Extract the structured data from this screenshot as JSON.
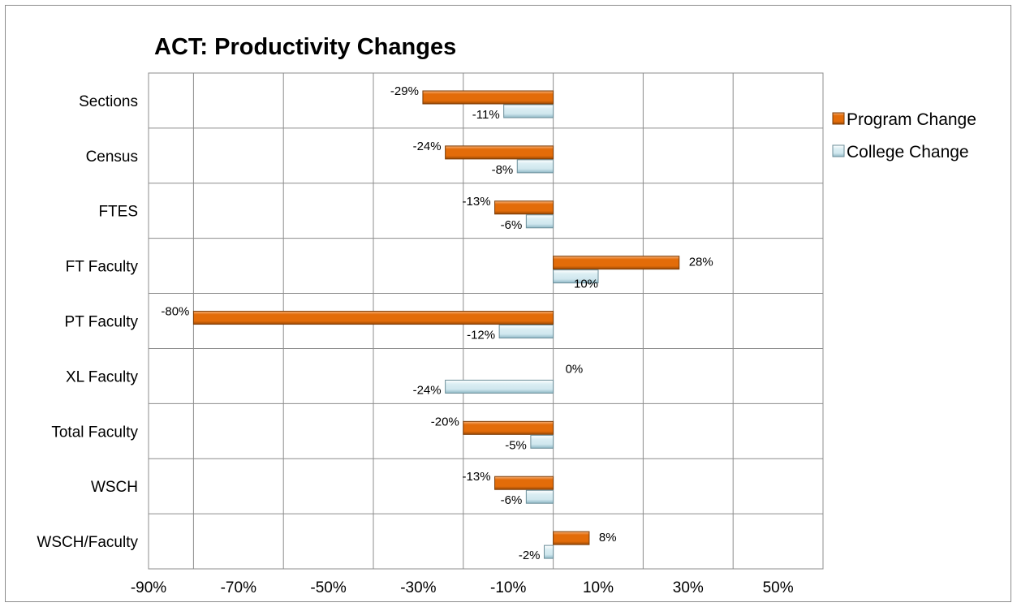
{
  "chart_data": {
    "type": "bar",
    "orientation": "horizontal",
    "title": "ACT: Productivity Changes",
    "categories": [
      "Sections",
      "Census",
      "FTES",
      "FT Faculty",
      "PT Faculty",
      "XL Faculty",
      "Total Faculty",
      "WSCH",
      "WSCH/Faculty"
    ],
    "series": [
      {
        "name": "Program Change",
        "color": "#e36c09",
        "values": [
          -29,
          -24,
          -13,
          28,
          -80,
          0,
          -20,
          -13,
          8
        ],
        "labels": [
          "-29%",
          "-24%",
          "-13%",
          "28%",
          "-80%",
          "0%",
          "-20%",
          "-13%",
          "8%"
        ]
      },
      {
        "name": "College Change",
        "color": "#dbeef3",
        "values": [
          -11,
          -8,
          -6,
          10,
          -12,
          -24,
          -5,
          -6,
          -2
        ],
        "labels": [
          "-11%",
          "-8%",
          "-6%",
          "10%",
          "-12%",
          "-24%",
          "-5%",
          "-6%",
          "-2%"
        ]
      }
    ],
    "xlim": [
      -90,
      60
    ],
    "xticks": [
      -90,
      -70,
      -50,
      -30,
      -10,
      10,
      30,
      50
    ],
    "xtick_labels": [
      "-90%",
      "-70%",
      "-50%",
      "-30%",
      "-10%",
      "10%",
      "30%",
      "50%"
    ],
    "grid": true,
    "legend_position": "right"
  }
}
